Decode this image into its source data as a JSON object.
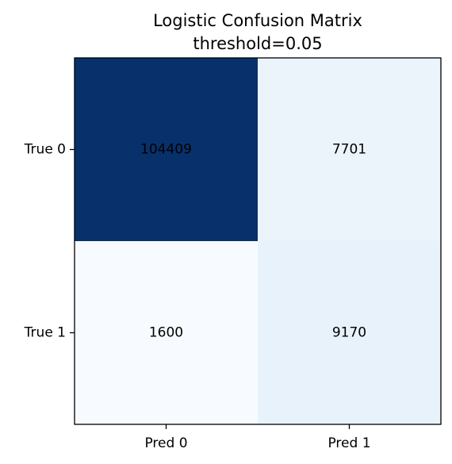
{
  "chart_data": {
    "type": "heatmap",
    "title": "Logistic Confusion Matrix",
    "subtitle": "threshold=0.05",
    "colormap": "Blues",
    "colors": {
      "min": "#f7fbff",
      "max": "#08306b",
      "label": "#000000",
      "axis": "#000000"
    },
    "rows": [
      "True 0",
      "True 1"
    ],
    "columns": [
      "Pred 0",
      "Pred 1"
    ],
    "values": [
      [
        104409,
        7701
      ],
      [
        1600,
        9170
      ]
    ],
    "grid": false
  }
}
